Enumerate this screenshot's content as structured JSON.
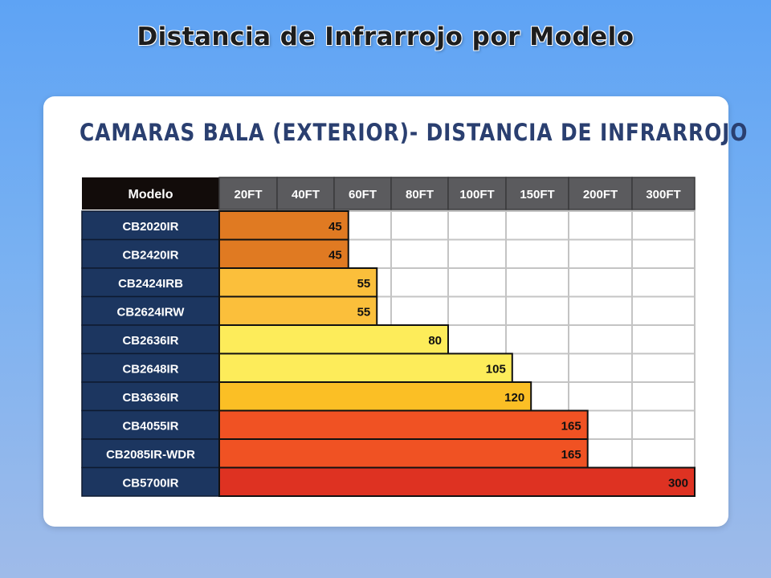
{
  "page_title": "Distancia de Infrarrojo por Modelo",
  "card_title": "Camaras bala (Exterior)- Distancia de Infrarrojo",
  "chart_data": {
    "type": "bar",
    "orientation": "horizontal",
    "header_label": "Modelo",
    "column_labels": [
      "20FT",
      "40FT",
      "60FT",
      "80FT",
      "100FT",
      "150FT",
      "200FT",
      "300FT"
    ],
    "column_values": [
      20,
      40,
      60,
      80,
      100,
      150,
      200,
      300
    ],
    "categories": [
      "CB2020IR",
      "CB2420IR",
      "CB2424IRB",
      "CB2624IRW",
      "CB2636IR",
      "CB2648IR",
      "CB3636IR",
      "CB4055IR",
      "CB2085IR-WDR",
      "CB5700IR"
    ],
    "values": [
      45,
      45,
      55,
      55,
      80,
      105,
      120,
      165,
      165,
      300
    ],
    "bar_colors": [
      "#e07a22",
      "#e07a22",
      "#fbbf3b",
      "#fbbf3b",
      "#fdec5a",
      "#fdec5a",
      "#fbbf25",
      "#f05223",
      "#f05223",
      "#de3222"
    ],
    "header_colors": {
      "model_header": "#120c0a",
      "column_header": "#5b5b5e",
      "model_cell": "#1c3660"
    }
  }
}
